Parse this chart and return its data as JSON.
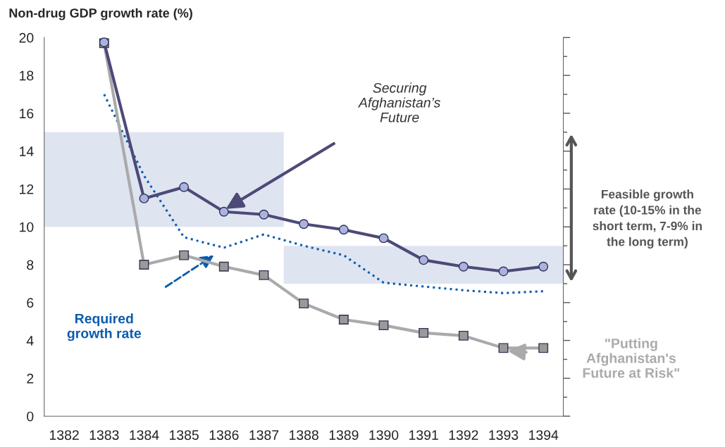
{
  "chart_data": {
    "type": "line",
    "title": "Non-drug GDP growth rate (%)",
    "categories": [
      "1382",
      "1383",
      "1384",
      "1385",
      "1386",
      "1387",
      "1388",
      "1389",
      "1390",
      "1391",
      "1392",
      "1393",
      "1394"
    ],
    "series": [
      {
        "color": "#4d4a78",
        "marker": "circle",
        "line_style": "solid",
        "values": [
          null,
          19.75,
          11.5,
          12.1,
          10.8,
          10.65,
          10.15,
          9.85,
          9.4,
          8.25,
          7.9,
          7.65,
          7.9
        ]
      },
      {
        "color": "#aaaaaa",
        "marker": "square",
        "line_style": "solid",
        "values": [
          null,
          19.7,
          8.0,
          8.5,
          7.9,
          7.45,
          5.95,
          5.1,
          4.8,
          4.4,
          4.25,
          3.6,
          3.6
        ]
      },
      {
        "color": "#0b5cad",
        "marker": "none",
        "line_style": "dotted",
        "values": [
          null,
          17.0,
          12.7,
          9.45,
          8.9,
          9.6,
          9.0,
          8.5,
          7.05,
          6.85,
          6.65,
          6.5,
          6.6
        ]
      }
    ],
    "bands": [
      {
        "axis": "y",
        "from": 10,
        "to": 15,
        "color": "#dfe4f1"
      },
      {
        "axis": "y",
        "from": 7,
        "to": 9,
        "color": "#dfe4f1"
      }
    ],
    "ylim": [
      0,
      20
    ],
    "yticks": [
      0,
      {
        "value": 1,
        "label": null
      },
      2,
      {
        "value": 3,
        "label": null
      },
      4,
      {
        "value": 5,
        "label": null
      },
      6,
      {
        "value": 7,
        "label": null
      },
      8,
      {
        "value": 9,
        "label": null
      },
      10,
      {
        "value": 11,
        "label": null
      },
      12,
      {
        "value": 13,
        "label": null
      },
      14,
      {
        "value": 15,
        "label": null
      },
      16,
      {
        "value": 17,
        "label": null
      },
      18,
      {
        "value": 19,
        "label": null
      },
      20
    ],
    "annotations": [
      "Securing\nAfghanistan’s\nFuture",
      "Required\ngrowth rate",
      "\"Putting\nAfghanistan's\nFuture at Risk\"",
      "Feasible growth\nrate (10-15% in the\nshort term, 7-9% in\nthe long term)"
    ],
    "grid": false,
    "legend": false
  }
}
